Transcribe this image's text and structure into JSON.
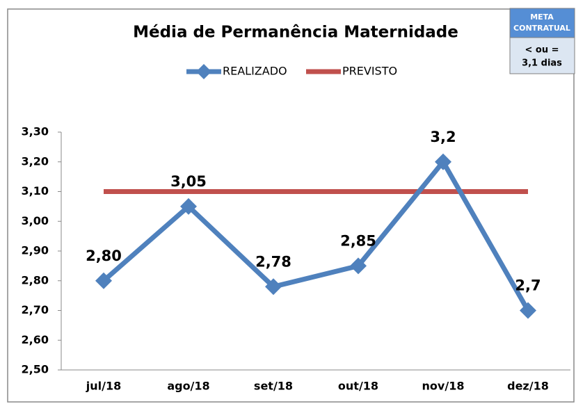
{
  "chart_data": {
    "type": "line",
    "title": "Média de Permanência Maternidade",
    "categories": [
      "jul/18",
      "ago/18",
      "set/18",
      "out/18",
      "nov/18",
      "dez/18"
    ],
    "series": [
      {
        "name": "REALIZADO",
        "color": "#4f81bd",
        "marker": "diamond",
        "values": [
          2.8,
          3.05,
          2.78,
          2.85,
          3.2,
          2.7
        ],
        "value_labels": [
          "2,80",
          "3,05",
          "2,78",
          "2,85",
          "3,2",
          "2,7"
        ]
      },
      {
        "name": "PREVISTO",
        "color": "#c0504d",
        "values": [
          3.1,
          3.1,
          3.1,
          3.1,
          3.1,
          3.1
        ]
      }
    ],
    "ylim": [
      2.5,
      3.3
    ],
    "yticks": [
      {
        "value": 2.5,
        "label": "2,50"
      },
      {
        "value": 2.6,
        "label": "2,60"
      },
      {
        "value": 2.7,
        "label": "2,70"
      },
      {
        "value": 2.8,
        "label": "2,80"
      },
      {
        "value": 2.9,
        "label": "2,90"
      },
      {
        "value": 3.0,
        "label": "3,00"
      },
      {
        "value": 3.1,
        "label": "3,10"
      },
      {
        "value": 3.2,
        "label": "3,20"
      },
      {
        "value": 3.3,
        "label": "3,30"
      }
    ],
    "legend": "top",
    "meta_box": {
      "header": [
        "META",
        "CONTRATUAL"
      ],
      "body": [
        "< ou =",
        "3,1 dias"
      ]
    }
  }
}
